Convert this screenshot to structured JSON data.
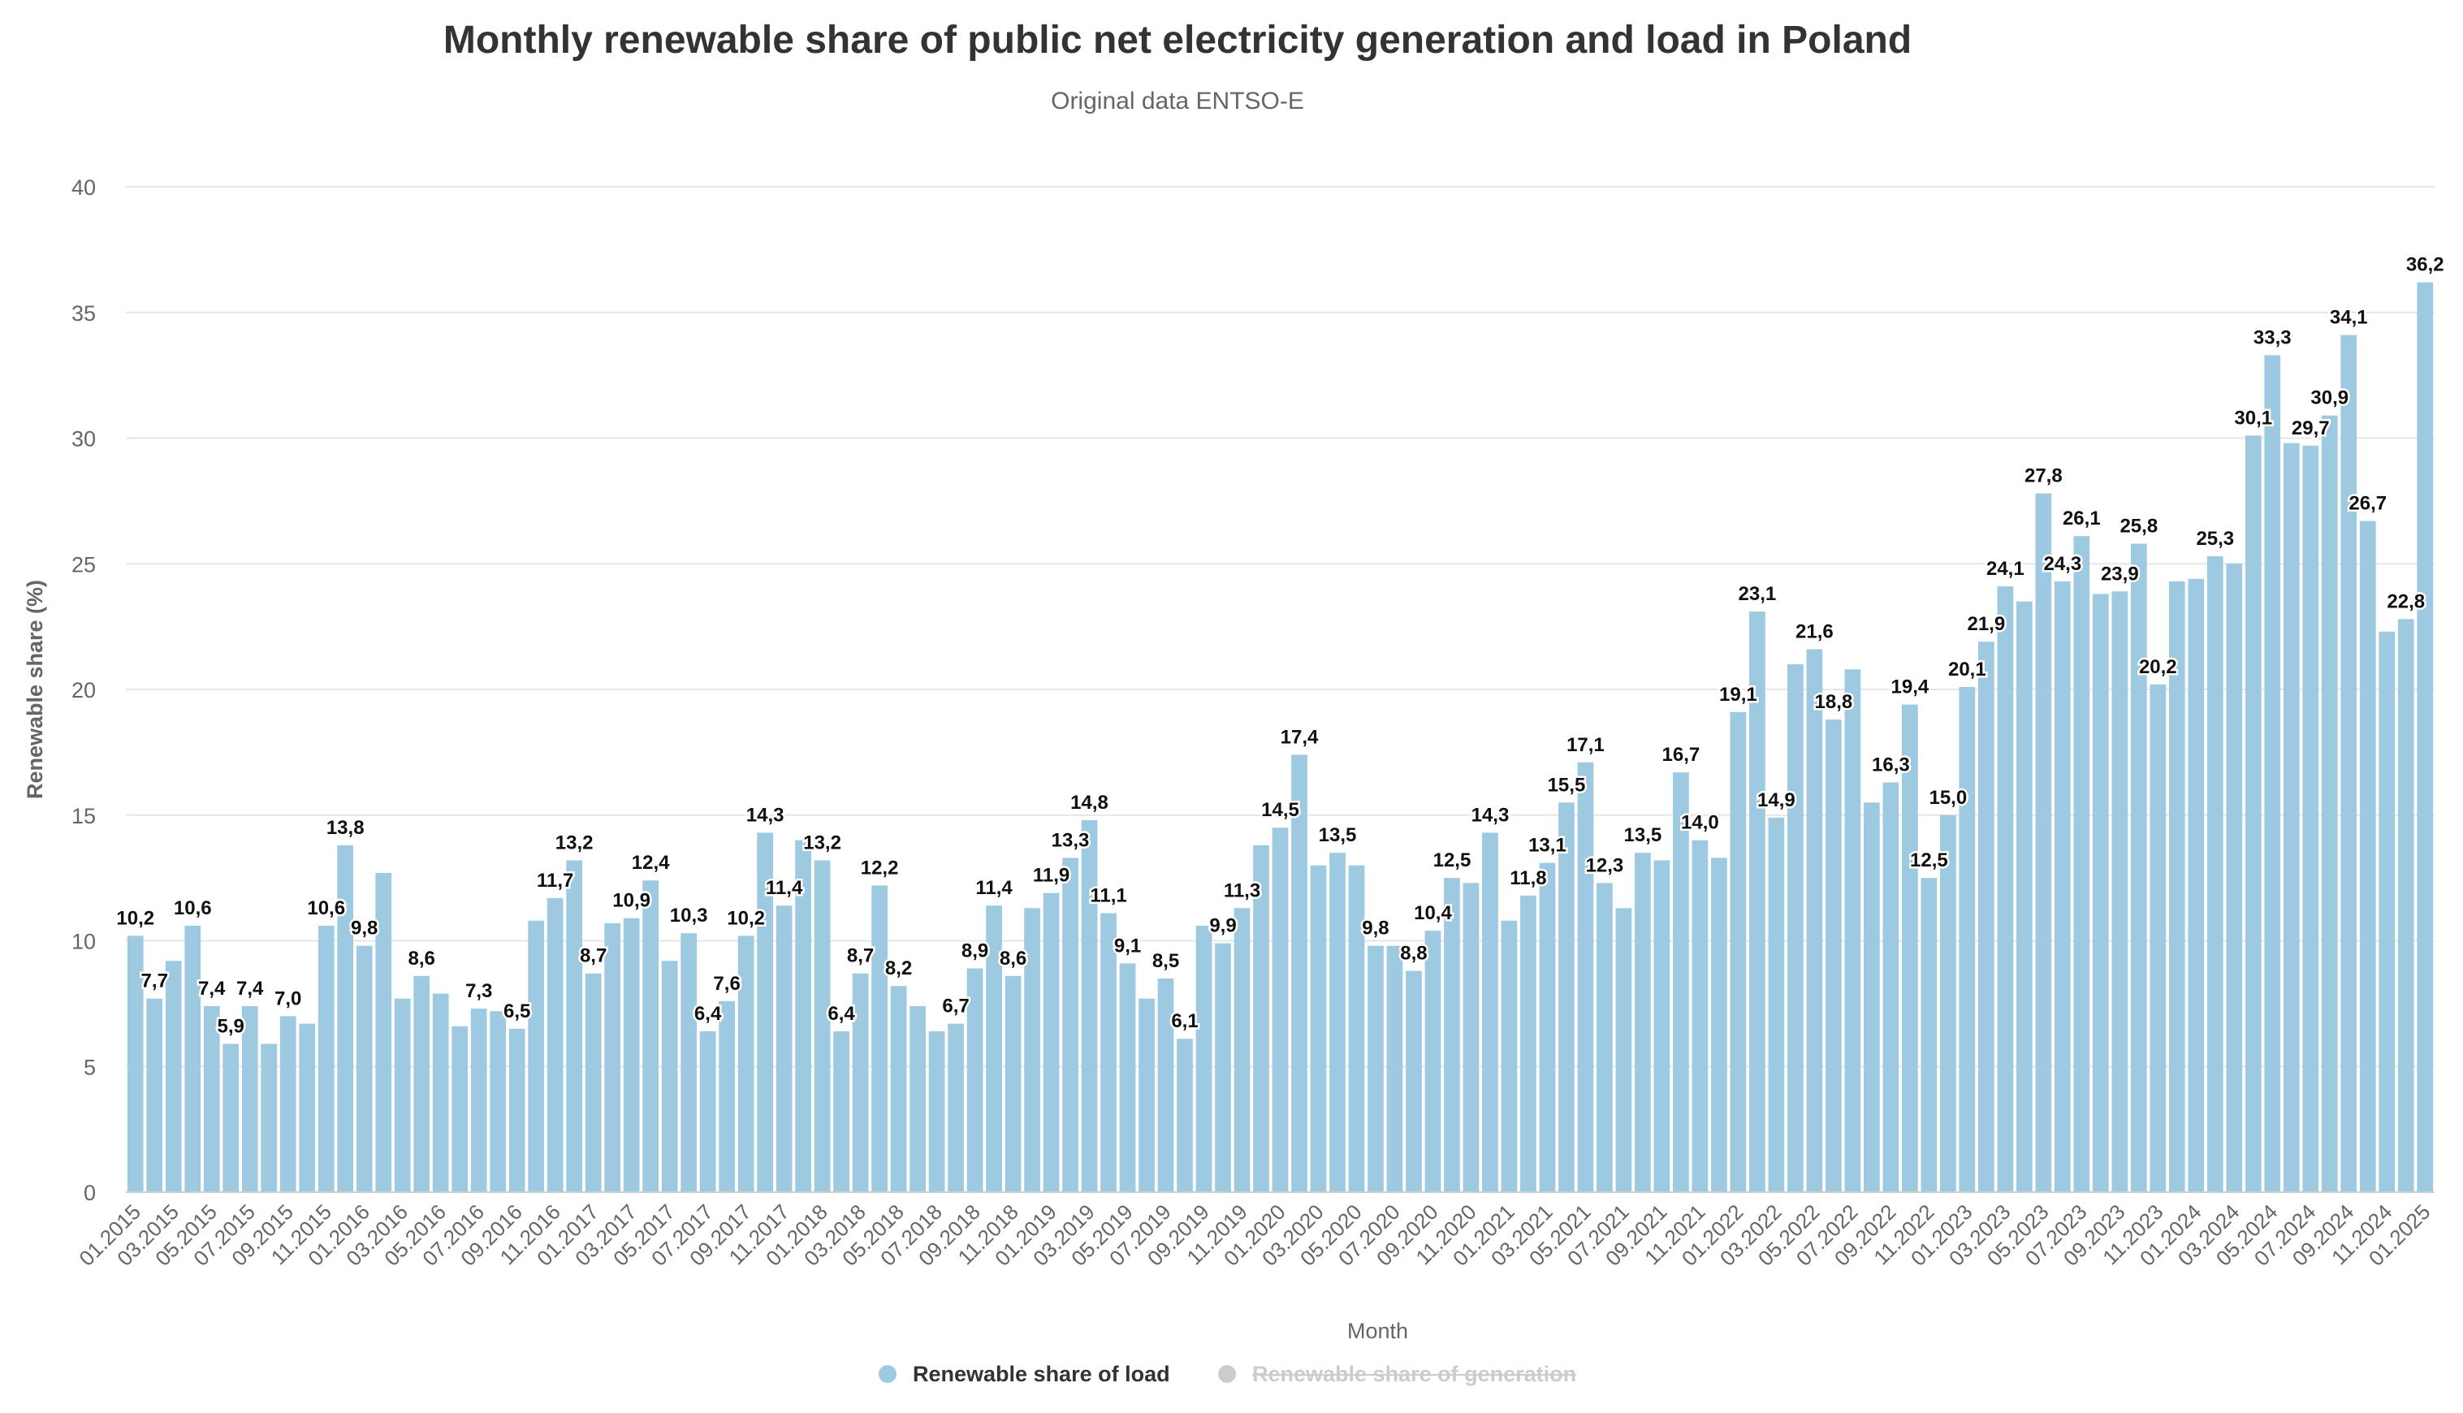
{
  "chart_data": {
    "type": "bar",
    "title": "Monthly renewable share of public net electricity generation and load in Poland",
    "subtitle": "Original data ENTSO-E",
    "xlabel": "Month",
    "ylabel": "Renewable share (%)",
    "ylim": [
      0,
      40
    ],
    "yticks": [
      0,
      5,
      10,
      15,
      20,
      25,
      30,
      35,
      40
    ],
    "grid": true,
    "legend_position": "bottom-center",
    "x_tick_labels": [
      "01.2015",
      "03.2015",
      "05.2015",
      "07.2015",
      "09.2015",
      "11.2015",
      "01.2016",
      "03.2016",
      "05.2016",
      "07.2016",
      "09.2016",
      "11.2016",
      "01.2017",
      "03.2017",
      "05.2017",
      "07.2017",
      "09.2017",
      "11.2017",
      "01.2018",
      "03.2018",
      "05.2018",
      "07.2018",
      "09.2018",
      "11.2018",
      "01.2019",
      "03.2019",
      "05.2019",
      "07.2019",
      "09.2019",
      "11.2019",
      "01.2020",
      "03.2020",
      "05.2020",
      "07.2020",
      "09.2020",
      "11.2020",
      "01.2021",
      "03.2021",
      "05.2021",
      "07.2021",
      "09.2021",
      "11.2021",
      "01.2022",
      "03.2022",
      "05.2022",
      "07.2022",
      "09.2022",
      "11.2022",
      "01.2023",
      "03.2023",
      "05.2023",
      "07.2023",
      "09.2023",
      "11.2023",
      "01.2024",
      "03.2024",
      "05.2024",
      "07.2024",
      "09.2024",
      "11.2024",
      "01.2025"
    ],
    "series": [
      {
        "name": "Renewable share of load",
        "color": "#9ecae1",
        "visible": true,
        "values": [
          10.2,
          7.7,
          9.2,
          10.6,
          7.4,
          5.9,
          7.4,
          5.9,
          7.0,
          6.7,
          10.6,
          13.8,
          9.8,
          12.7,
          7.7,
          8.6,
          7.9,
          6.6,
          7.3,
          7.2,
          6.5,
          10.8,
          11.7,
          13.2,
          8.7,
          10.7,
          10.9,
          12.4,
          9.2,
          10.3,
          6.4,
          7.6,
          10.2,
          14.3,
          11.4,
          14.0,
          13.2,
          6.4,
          8.7,
          12.2,
          8.2,
          7.4,
          6.4,
          6.7,
          8.9,
          11.4,
          8.6,
          11.3,
          11.9,
          13.3,
          14.8,
          11.1,
          9.1,
          7.7,
          8.5,
          6.1,
          10.6,
          9.9,
          11.3,
          13.8,
          14.5,
          17.4,
          13.0,
          13.5,
          13.0,
          9.8,
          9.8,
          8.8,
          10.4,
          12.5,
          12.3,
          14.3,
          10.8,
          11.8,
          13.1,
          15.5,
          17.1,
          12.3,
          11.3,
          13.5,
          13.2,
          16.7,
          14.0,
          13.3,
          19.1,
          23.1,
          14.9,
          21.0,
          21.6,
          18.8,
          20.8,
          15.5,
          16.3,
          19.4,
          12.5,
          15.0,
          20.1,
          21.9,
          24.1,
          23.5,
          27.8,
          24.3,
          26.1,
          23.8,
          23.9,
          25.8,
          20.2,
          24.3,
          24.4,
          25.3,
          25.0,
          30.1,
          33.3,
          29.8,
          29.7,
          30.9,
          34.1,
          26.7,
          22.3,
          22.8,
          36.2
        ],
        "labels": [
          "10,2",
          "7,7",
          "",
          "10,6",
          "7,4",
          "5,9",
          "7,4",
          "",
          "7,0",
          "",
          "10,6",
          "13,8",
          "9,8",
          "",
          "",
          "8,6",
          "",
          "",
          "7,3",
          "",
          "6,5",
          "",
          "11,7",
          "13,2",
          "8,7",
          "",
          "10,9",
          "12,4",
          "",
          "10,3",
          "6,4",
          "7,6",
          "10,2",
          "14,3",
          "11,4",
          "",
          "13,2",
          "6,4",
          "8,7",
          "12,2",
          "8,2",
          "",
          "",
          "6,7",
          "8,9",
          "11,4",
          "8,6",
          "",
          "11,9",
          "13,3",
          "14,8",
          "11,1",
          "9,1",
          "",
          "8,5",
          "6,1",
          "",
          "9,9",
          "11,3",
          "",
          "14,5",
          "17,4",
          "",
          "13,5",
          "",
          "9,8",
          "",
          "8,8",
          "10,4",
          "12,5",
          "",
          "14,3",
          "",
          "11,8",
          "13,1",
          "15,5",
          "17,1",
          "12,3",
          "",
          "13,5",
          "",
          "16,7",
          "14,0",
          "",
          "19,1",
          "23,1",
          "14,9",
          "",
          "21,6",
          "18,8",
          "",
          "",
          "16,3",
          "19,4",
          "12,5",
          "15,0",
          "20,1",
          "21,9",
          "24,1",
          "",
          "27,8",
          "24,3",
          "26,1",
          "",
          "23,9",
          "25,8",
          "20,2",
          "",
          "",
          "25,3",
          "",
          "30,1",
          "33,3",
          "",
          "29,7",
          "30,9",
          "34,1",
          "26,7",
          "",
          "22,8",
          "36,2"
        ]
      },
      {
        "name": "Renewable share of generation",
        "color": "#cccccc",
        "visible": false,
        "values": []
      }
    ]
  },
  "colors": {
    "title": "#333333",
    "subtitle": "#666666",
    "axis_text": "#666666",
    "grid": "#e6e6e6",
    "bar": "#9ecae1",
    "legend_active": "#333333",
    "legend_inactive": "#cccccc"
  }
}
